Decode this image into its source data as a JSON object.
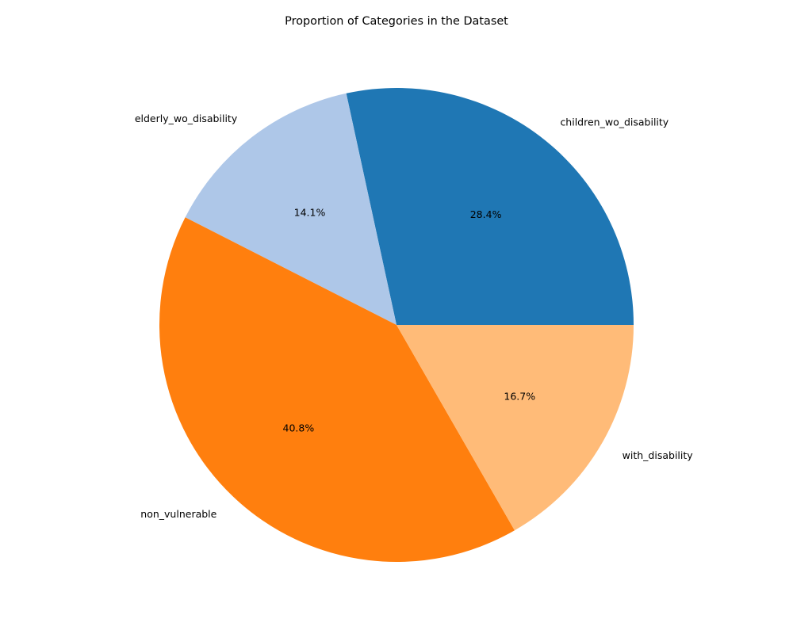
{
  "chart_data": {
    "type": "pie",
    "title": "Proportion of Categories in the Dataset",
    "start_angle_deg": 0,
    "direction": "counterclockwise",
    "slices": [
      {
        "label": "children_wo_disability",
        "value": 28.4,
        "pct_text": "28.4%",
        "color": "#1f77b4"
      },
      {
        "label": "elderly_wo_disability",
        "value": 14.1,
        "pct_text": "14.1%",
        "color": "#aec7e8"
      },
      {
        "label": "non_vulnerable",
        "value": 40.8,
        "pct_text": "40.8%",
        "color": "#ff7f0e"
      },
      {
        "label": "with_disability",
        "value": 16.7,
        "pct_text": "16.7%",
        "color": "#ffbb78"
      }
    ]
  }
}
